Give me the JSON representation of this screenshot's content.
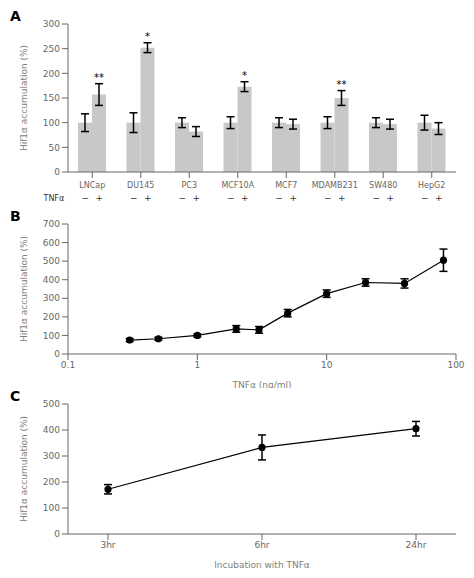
{
  "chart_data": [
    {
      "type": "bar",
      "title": "A",
      "categories": [
        "LNCap",
        "DU145",
        "PC3",
        "MCF10A",
        "MCF7",
        "MDAMB231",
        "SW480",
        "HepG2"
      ],
      "series_label": "TNFα",
      "series": [
        {
          "name": "−",
          "color": "#c8c8c8",
          "values": [
            100,
            100,
            100,
            100,
            100,
            100,
            100,
            100
          ],
          "errors": [
            18,
            20,
            10,
            12,
            10,
            12,
            10,
            15
          ]
        },
        {
          "name": "+",
          "color": "#c8c8c8",
          "values": [
            157,
            252,
            82,
            173,
            97,
            150,
            97,
            88
          ],
          "errors": [
            22,
            10,
            10,
            10,
            10,
            15,
            10,
            12
          ],
          "annotations": [
            "**",
            "*",
            null,
            "*",
            null,
            "**",
            null,
            null
          ]
        }
      ],
      "y_label": "Hif1α accumulation (%)",
      "ylim": [
        0,
        300
      ],
      "yticks": [
        0,
        50,
        100,
        150,
        200,
        250,
        300
      ],
      "grid": false
    },
    {
      "type": "line",
      "title": "B",
      "x": [
        0.3,
        0.5,
        1.0,
        2.0,
        3.0,
        5.0,
        10.0,
        20.0,
        40.0,
        80.0
      ],
      "values": [
        75,
        82,
        100,
        135,
        130,
        220,
        325,
        385,
        380,
        505
      ],
      "errors": [
        8,
        8,
        8,
        18,
        18,
        20,
        20,
        20,
        25,
        60
      ],
      "color": "#000000",
      "marker": "circle",
      "log": "x",
      "x_label": "TNFα (ng/ml)",
      "y_label": "Hif1α accumulation (%)",
      "xlim": [
        0.1,
        100
      ],
      "xticks": [
        0.1,
        1,
        10,
        100
      ],
      "ylim": [
        0,
        700
      ],
      "yticks": [
        0,
        100,
        200,
        300,
        400,
        500,
        600,
        700
      ],
      "grid": false
    },
    {
      "type": "line",
      "title": "C",
      "categories": [
        "3hr",
        "6hr",
        "24hr"
      ],
      "values": [
        172,
        333,
        405
      ],
      "errors": [
        18,
        48,
        28
      ],
      "color": "#000000",
      "marker": "circle",
      "x_label": "Incubation with TNFα",
      "y_label": "Hif1α accumulation (%)",
      "ylim": [
        0,
        500
      ],
      "yticks": [
        0,
        100,
        200,
        300,
        400,
        500
      ],
      "grid": false
    }
  ]
}
